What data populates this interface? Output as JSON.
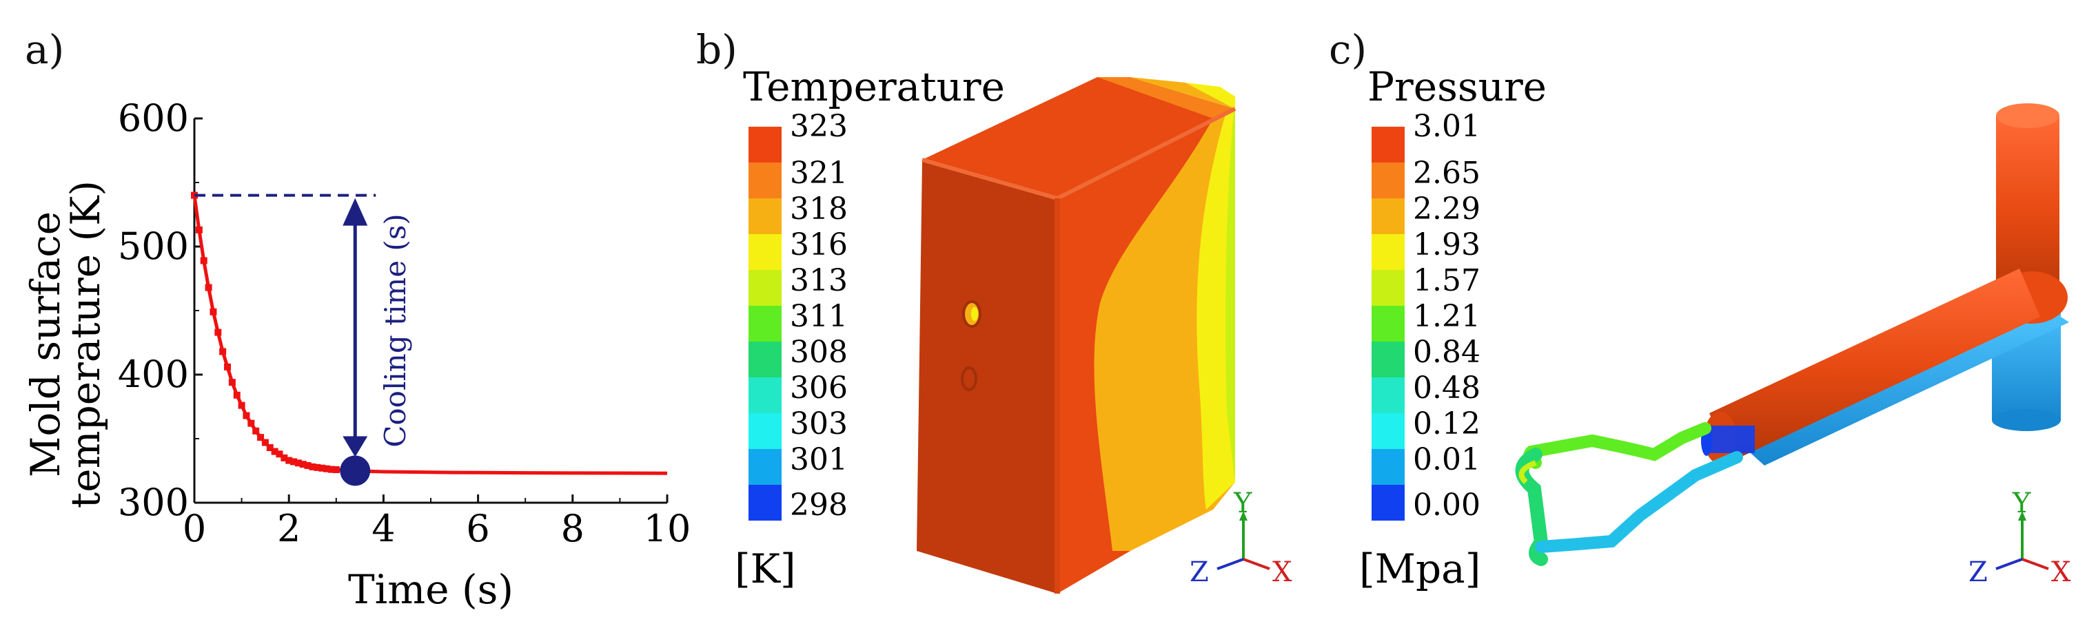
{
  "panels": {
    "a": "a)",
    "b": "b)",
    "c": "c)"
  },
  "colors": {
    "curve": "#ee1111",
    "annotation": "#1c2080",
    "marker": "#1c2080"
  },
  "chart_data": {
    "type": "line",
    "xlabel": "Time (s)",
    "ylabel": "Mold surface temperature (K)",
    "ylabel_lines": [
      "Mold surface",
      "temperature (K)"
    ],
    "xlim": [
      0,
      10
    ],
    "ylim": [
      300,
      600
    ],
    "x_ticks": [
      "0",
      "2",
      "4",
      "6",
      "8",
      "10"
    ],
    "y_ticks": [
      "300",
      "400",
      "500",
      "600"
    ],
    "grid": false,
    "series": [
      {
        "x": [
          0,
          0.1,
          0.2,
          0.3,
          0.4,
          0.5,
          0.6,
          0.7,
          0.8,
          0.9,
          1.0,
          1.1,
          1.2,
          1.3,
          1.4,
          1.5,
          1.6,
          1.7,
          1.8,
          1.9,
          2.0,
          2.1,
          2.2,
          2.3,
          2.4,
          2.5,
          2.6,
          2.7,
          2.8,
          2.9,
          3.0,
          3.1,
          3.2,
          3.3,
          3.4,
          3.5,
          3.6,
          3.7,
          3.8,
          3.9,
          4.0,
          4.5,
          5.0,
          5.5,
          6.0,
          7.0,
          8.0,
          9.0,
          10.0
        ],
        "y": [
          540,
          513,
          489,
          468,
          449,
          433,
          418,
          406,
          394,
          384,
          376,
          368,
          362,
          356,
          351,
          347,
          343,
          340,
          338,
          335,
          333,
          332,
          331,
          330,
          329,
          328,
          327.5,
          327,
          326.5,
          326,
          325.8,
          325.6,
          325.4,
          325.2,
          325,
          324.8,
          324.6,
          324.5,
          324.4,
          324.3,
          324.2,
          324,
          323.8,
          323.6,
          323.5,
          323.3,
          323.2,
          323.1,
          323
        ]
      }
    ],
    "annotations": {
      "cooling_time_label": "Cooling time (s)",
      "start_y": 540,
      "end_x": 3.4,
      "end_y": 325
    }
  },
  "temperature": {
    "title": "Temperature",
    "unit": "[K]",
    "labels": [
      "323",
      "321",
      "318",
      "316",
      "313",
      "311",
      "308",
      "306",
      "303",
      "301",
      "298"
    ],
    "colors": [
      "#ee4411",
      "#f7801a",
      "#f7b014",
      "#f5f012",
      "#c8f014",
      "#60ec22",
      "#22d870",
      "#22e8c8",
      "#20f0f0",
      "#12a8ee",
      "#1040f0"
    ]
  },
  "pressure": {
    "title": "Pressure",
    "unit": "[Mpa]",
    "labels": [
      "3.01",
      "2.65",
      "2.29",
      "1.93",
      "1.57",
      "1.21",
      "0.84",
      "0.48",
      "0.12",
      "0.01",
      "0.00"
    ],
    "colors": [
      "#ee4411",
      "#f7801a",
      "#f7b014",
      "#f5f012",
      "#c8f014",
      "#60ec22",
      "#22d870",
      "#22e8c8",
      "#20f0f0",
      "#12a8ee",
      "#1040f0"
    ]
  },
  "triad": {
    "y": "Y",
    "z": "Z",
    "x": "X"
  }
}
